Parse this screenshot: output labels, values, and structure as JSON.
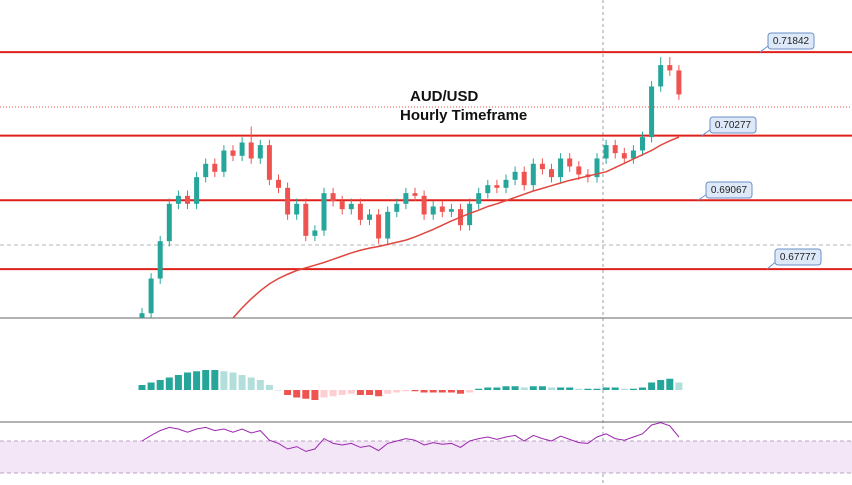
{
  "chart_data": {
    "type": "candlestick",
    "title": "AUD/USD",
    "subtitle": "Hourly Timeframe",
    "open": [
      0.668,
      0.6695,
      0.676,
      0.683,
      0.69,
      0.6915,
      0.69,
      0.695,
      0.6975,
      0.696,
      0.7,
      0.699,
      0.7015,
      0.6985,
      0.701,
      0.6945,
      0.693,
      0.688,
      0.69,
      0.684,
      0.685,
      0.692,
      0.6905,
      0.689,
      0.69,
      0.687,
      0.688,
      0.6835,
      0.6885,
      0.69,
      0.692,
      0.6915,
      0.688,
      0.6895,
      0.6885,
      0.689,
      0.686,
      0.69,
      0.692,
      0.6935,
      0.693,
      0.6945,
      0.696,
      0.6935,
      0.6975,
      0.6965,
      0.695,
      0.6985,
      0.697,
      0.6955,
      0.695,
      0.6985,
      0.701,
      0.6995,
      0.6985,
      0.7,
      0.7025,
      0.712,
      0.716,
      0.715
    ],
    "high": [
      0.6705,
      0.677,
      0.684,
      0.691,
      0.6925,
      0.6925,
      0.696,
      0.6985,
      0.6985,
      0.701,
      0.701,
      0.7025,
      0.7045,
      0.702,
      0.702,
      0.6955,
      0.694,
      0.691,
      0.691,
      0.686,
      0.693,
      0.693,
      0.6915,
      0.691,
      0.691,
      0.689,
      0.689,
      0.6895,
      0.691,
      0.693,
      0.693,
      0.6925,
      0.6905,
      0.6905,
      0.69,
      0.69,
      0.691,
      0.693,
      0.6945,
      0.6945,
      0.6955,
      0.697,
      0.697,
      0.6985,
      0.6985,
      0.6975,
      0.6995,
      0.6995,
      0.698,
      0.6965,
      0.6995,
      0.702,
      0.702,
      0.7005,
      0.701,
      0.7035,
      0.713,
      0.7175,
      0.7175,
      0.716
    ],
    "low": [
      0.667,
      0.6685,
      0.675,
      0.682,
      0.689,
      0.689,
      0.689,
      0.694,
      0.695,
      0.695,
      0.698,
      0.698,
      0.6975,
      0.6975,
      0.6935,
      0.692,
      0.687,
      0.687,
      0.683,
      0.683,
      0.684,
      0.6895,
      0.688,
      0.688,
      0.686,
      0.686,
      0.6825,
      0.6825,
      0.6875,
      0.689,
      0.6905,
      0.687,
      0.687,
      0.6875,
      0.6875,
      0.685,
      0.685,
      0.689,
      0.691,
      0.692,
      0.692,
      0.6935,
      0.6925,
      0.6925,
      0.6955,
      0.694,
      0.694,
      0.696,
      0.6945,
      0.694,
      0.694,
      0.6975,
      0.6985,
      0.6975,
      0.6975,
      0.699,
      0.7015,
      0.711,
      0.714,
      0.7095
    ],
    "close": [
      0.6695,
      0.676,
      0.683,
      0.69,
      0.6915,
      0.69,
      0.695,
      0.6975,
      0.696,
      0.7,
      0.699,
      0.7015,
      0.6985,
      0.701,
      0.6945,
      0.693,
      0.688,
      0.69,
      0.684,
      0.685,
      0.692,
      0.6905,
      0.689,
      0.69,
      0.687,
      0.688,
      0.6835,
      0.6885,
      0.69,
      0.692,
      0.6915,
      0.688,
      0.6895,
      0.6885,
      0.689,
      0.686,
      0.69,
      0.692,
      0.6935,
      0.693,
      0.6945,
      0.696,
      0.6935,
      0.6975,
      0.6965,
      0.695,
      0.6985,
      0.697,
      0.6955,
      0.695,
      0.6985,
      0.701,
      0.6995,
      0.6985,
      0.7,
      0.7025,
      0.712,
      0.716,
      0.715,
      0.7105
    ],
    "ma": [
      null,
      null,
      null,
      null,
      null,
      null,
      null,
      null,
      null,
      null,
      0.6686,
      0.6705,
      0.6722,
      0.6737,
      0.675,
      0.676,
      0.6768,
      0.6775,
      0.678,
      0.6785,
      0.679,
      0.6796,
      0.6802,
      0.6808,
      0.6813,
      0.6817,
      0.682,
      0.6824,
      0.6828,
      0.6832,
      0.6838,
      0.6845,
      0.6852,
      0.686,
      0.6868,
      0.6875,
      0.6882,
      0.6888,
      0.6895,
      0.69,
      0.6906,
      0.6912,
      0.6918,
      0.6924,
      0.6929,
      0.6934,
      0.6939,
      0.6944,
      0.6948,
      0.6952,
      0.6956,
      0.696,
      0.6968,
      0.6976,
      0.6984,
      0.6992,
      0.7,
      0.701,
      0.7018,
      0.7025
    ],
    "ma_color": "#e0463e",
    "up_color": "#26a69a",
    "down_color": "#ef5350",
    "levels": [
      0.71842,
      0.70277,
      0.69067,
      0.67777
    ],
    "level_color": "#e0201b",
    "ylim": [
      0.6686,
      0.7282
    ],
    "histogram": [
      0.2,
      0.3,
      0.4,
      0.5,
      0.6,
      0.7,
      0.75,
      0.8,
      0.8,
      0.75,
      0.7,
      0.6,
      0.5,
      0.4,
      0.2,
      0,
      -0.2,
      -0.3,
      -0.35,
      -0.4,
      -0.3,
      -0.25,
      -0.2,
      -0.15,
      -0.2,
      -0.2,
      -0.25,
      -0.15,
      -0.1,
      -0.05,
      -0.05,
      -0.1,
      -0.1,
      -0.1,
      -0.1,
      -0.15,
      -0.1,
      0.05,
      0.1,
      0.1,
      0.15,
      0.15,
      0.1,
      0.15,
      0.15,
      0.1,
      0.1,
      0.1,
      0.05,
      0.05,
      0.05,
      0.1,
      0.1,
      0.05,
      0.05,
      0.1,
      0.3,
      0.4,
      0.45,
      0.3
    ],
    "histogram_ylim": [
      -1.2,
      2.8
    ],
    "rsi": [
      55,
      62,
      68,
      72,
      70,
      66,
      70,
      72,
      68,
      70,
      66,
      70,
      65,
      68,
      56,
      52,
      45,
      48,
      42,
      45,
      58,
      52,
      50,
      52,
      47,
      49,
      43,
      52,
      55,
      58,
      56,
      50,
      53,
      51,
      52,
      47,
      55,
      58,
      60,
      57,
      60,
      62,
      55,
      62,
      58,
      55,
      61,
      57,
      53,
      52,
      60,
      64,
      58,
      56,
      60,
      64,
      75,
      78,
      74,
      60
    ],
    "rsi_ylim": [
      0,
      100
    ],
    "rsi_color": "#9c27b0"
  }
}
